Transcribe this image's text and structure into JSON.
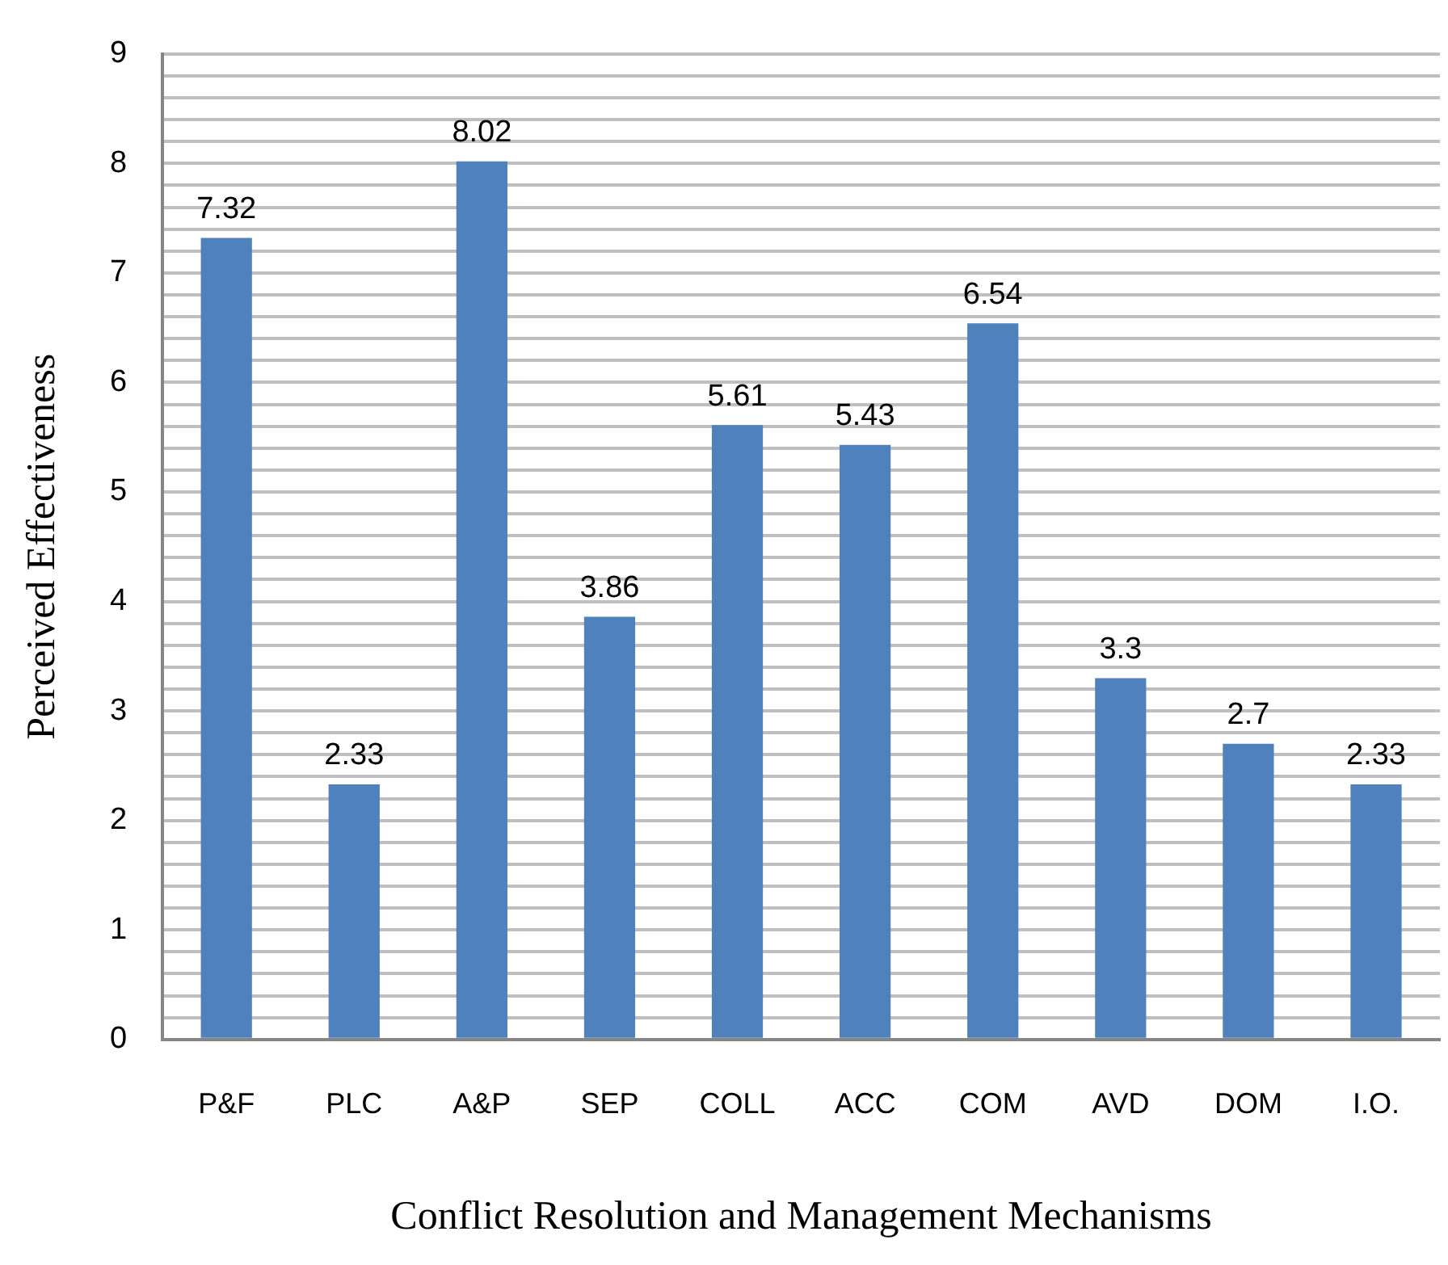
{
  "chart_data": {
    "type": "bar",
    "xlabel": "Conflict Resolution and Management Mechanisms",
    "ylabel": "Perceived Effectiveness",
    "categories": [
      "P&F",
      "PLC",
      "A&P",
      "SEP",
      "COLL",
      "ACC",
      "COM",
      "AVD",
      "DOM",
      "I.O."
    ],
    "values": [
      7.32,
      2.33,
      8.02,
      3.86,
      5.61,
      5.43,
      6.54,
      3.3,
      2.7,
      2.33
    ],
    "color": "#4f81bd",
    "ylim": [
      0,
      9
    ],
    "yticks": [
      0,
      {
        "value": 0.2,
        "label": null
      },
      {
        "value": 0.4,
        "label": null
      },
      {
        "value": 0.6,
        "label": null
      },
      {
        "value": 0.8,
        "label": null
      },
      1,
      {
        "value": 1.2,
        "label": null
      },
      {
        "value": 1.4,
        "label": null
      },
      {
        "value": 1.6,
        "label": null
      },
      {
        "value": 1.8,
        "label": null
      },
      2,
      {
        "value": 2.2,
        "label": null
      },
      {
        "value": 2.4,
        "label": null
      },
      {
        "value": 2.6,
        "label": null
      },
      {
        "value": 2.8,
        "label": null
      },
      3,
      {
        "value": 3.2,
        "label": null
      },
      {
        "value": 3.4,
        "label": null
      },
      {
        "value": 3.6,
        "label": null
      },
      {
        "value": 3.8,
        "label": null
      },
      4,
      {
        "value": 4.2,
        "label": null
      },
      {
        "value": 4.4,
        "label": null
      },
      {
        "value": 4.6,
        "label": null
      },
      {
        "value": 4.8,
        "label": null
      },
      5,
      {
        "value": 5.2,
        "label": null
      },
      {
        "value": 5.4,
        "label": null
      },
      {
        "value": 5.6,
        "label": null
      },
      {
        "value": 5.8,
        "label": null
      },
      6,
      {
        "value": 6.2,
        "label": null
      },
      {
        "value": 6.4,
        "label": null
      },
      {
        "value": 6.6,
        "label": null
      },
      {
        "value": 6.8,
        "label": null
      },
      7,
      {
        "value": 7.2,
        "label": null
      },
      {
        "value": 7.4,
        "label": null
      },
      {
        "value": 7.6,
        "label": null
      },
      {
        "value": 7.8,
        "label": null
      },
      8,
      {
        "value": 8.2,
        "label": null
      },
      {
        "value": 8.4,
        "label": null
      },
      {
        "value": 8.6,
        "label": null
      },
      {
        "value": 8.8,
        "label": null
      },
      9
    ],
    "grid": "y",
    "data_labels": true
  }
}
